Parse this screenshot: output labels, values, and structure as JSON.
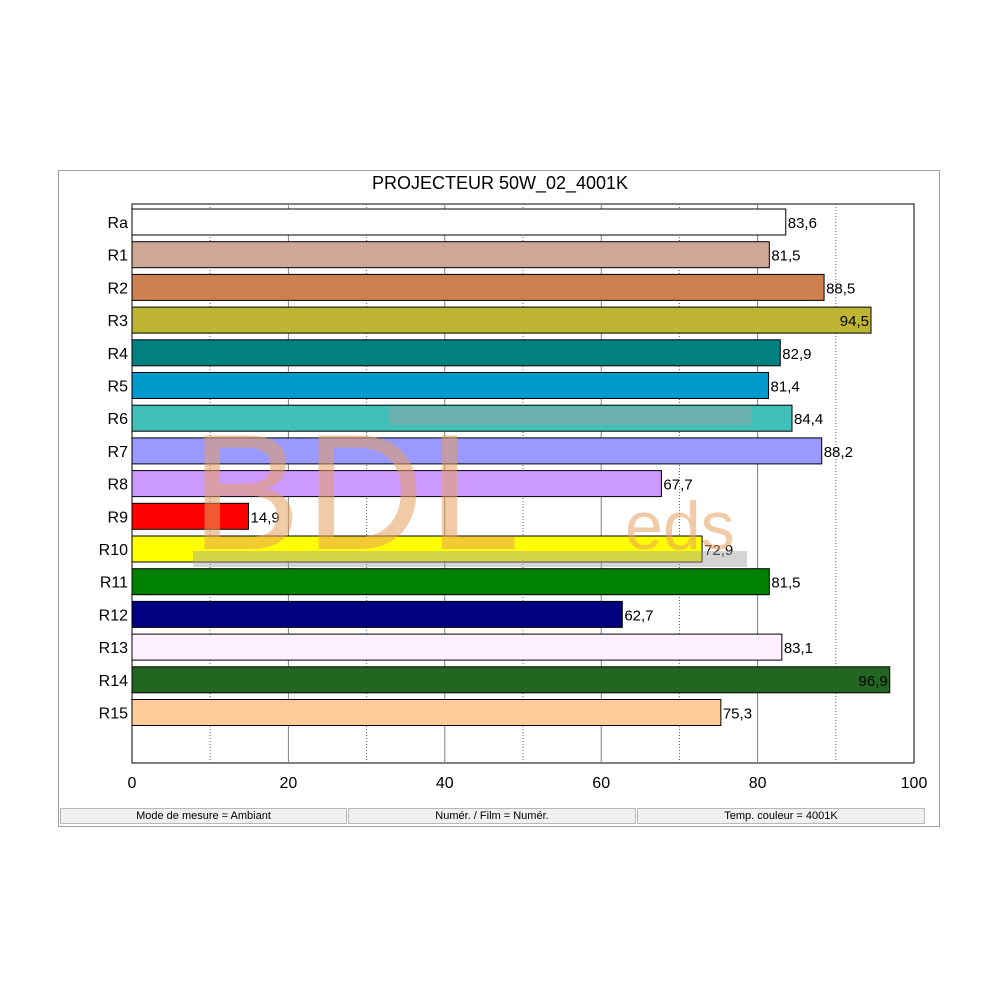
{
  "chart_data": {
    "type": "bar",
    "orientation": "horizontal",
    "title": "PROJECTEUR 50W_02_4001K",
    "xlabel": "",
    "ylabel": "",
    "xlim": [
      0,
      100
    ],
    "x_ticks": [
      "0",
      "20",
      "40",
      "60",
      "80",
      "100"
    ],
    "grid": "vertical dotted every 10, solid every 20",
    "categories": [
      "Ra",
      "R1",
      "R2",
      "R3",
      "R4",
      "R5",
      "R6",
      "R7",
      "R8",
      "R9",
      "R10",
      "R11",
      "R12",
      "R13",
      "R14",
      "R15"
    ],
    "values": [
      83.6,
      81.5,
      88.5,
      94.5,
      82.9,
      81.4,
      84.4,
      88.2,
      67.7,
      14.9,
      72.9,
      81.5,
      62.7,
      83.1,
      96.9,
      75.3
    ],
    "value_labels": [
      "83,6",
      "81,5",
      "88,5",
      "94,5",
      "82,9",
      "81,4",
      "84,4",
      "88,2",
      "67,7",
      "14,9",
      "72,9",
      "81,5",
      "62,7",
      "83,1",
      "96,9",
      "75,3"
    ],
    "label_inside": [
      false,
      false,
      false,
      true,
      false,
      false,
      false,
      false,
      false,
      false,
      false,
      false,
      false,
      false,
      true,
      false
    ],
    "colors": [
      "#ffffff",
      "#cfa796",
      "#cc8050",
      "#bfb534",
      "#008080",
      "#0099cc",
      "#40c0b8",
      "#9999ff",
      "#cc99ff",
      "#ff0000",
      "#ffff00",
      "#008000",
      "#000080",
      "#fff0ff",
      "#226622",
      "#ffcc99"
    ]
  },
  "status": {
    "mode": "Mode de mesure = Ambiant",
    "film": "Numér. / Film = Numér.",
    "temp": "Temp. couleur = 4001K"
  },
  "watermark": {
    "main": "BDL",
    "sub": "eds"
  }
}
